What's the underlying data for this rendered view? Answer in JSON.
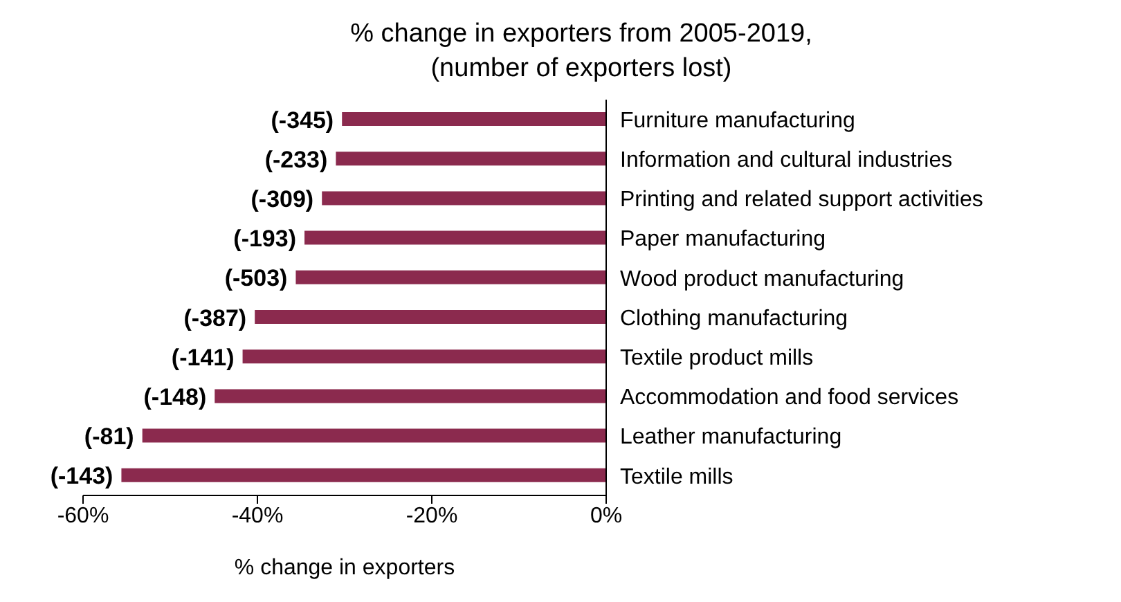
{
  "chart_data": {
    "type": "bar",
    "orientation": "horizontal",
    "title": "% change in exporters from 2005-2019,",
    "subtitle": "(number of exporters lost)",
    "xlabel": "% change in exporters",
    "categories": [
      "Furniture manufacturing",
      "Information and cultural industries",
      "Printing and related support activities",
      "Paper manufacturing",
      "Wood product manufacturing",
      "Clothing manufacturing",
      "Textile product mills",
      "Accommodation and food services",
      "Leather manufacturing",
      "Textile mills"
    ],
    "values": [
      -30.3,
      -31.0,
      -32.6,
      -34.6,
      -35.6,
      -40.3,
      -41.7,
      -44.9,
      -53.2,
      -55.6
    ],
    "annotations": [
      {
        "text": "(-345)",
        "x": -30.3,
        "y": "Furniture manufacturing"
      },
      {
        "text": "(-233)",
        "x": -31.0,
        "y": "Information and cultural industries"
      },
      {
        "text": "(-309)",
        "x": -32.6,
        "y": "Printing and related support activities"
      },
      {
        "text": "(-193)",
        "x": -34.6,
        "y": "Paper manufacturing"
      },
      {
        "text": "(-503)",
        "x": -35.6,
        "y": "Wood product manufacturing"
      },
      {
        "text": "(-387)",
        "x": -40.3,
        "y": "Clothing manufacturing"
      },
      {
        "text": "(-141)",
        "x": -41.7,
        "y": "Textile product mills"
      },
      {
        "text": "(-148)",
        "x": -44.9,
        "y": "Accommodation and food services"
      },
      {
        "text": "(-81)",
        "x": -53.2,
        "y": "Leather manufacturing"
      },
      {
        "text": "(-143)",
        "x": -55.6,
        "y": "Textile mills"
      }
    ],
    "color": "#8b2a4e",
    "xlim": [
      -60,
      0
    ],
    "xticks": [
      {
        "value": -60,
        "label": "-60%"
      },
      {
        "value": -40,
        "label": "-40%"
      },
      {
        "value": -20,
        "label": "-20%"
      },
      {
        "value": 0,
        "label": "0%"
      }
    ],
    "grid": false,
    "legend": false
  }
}
